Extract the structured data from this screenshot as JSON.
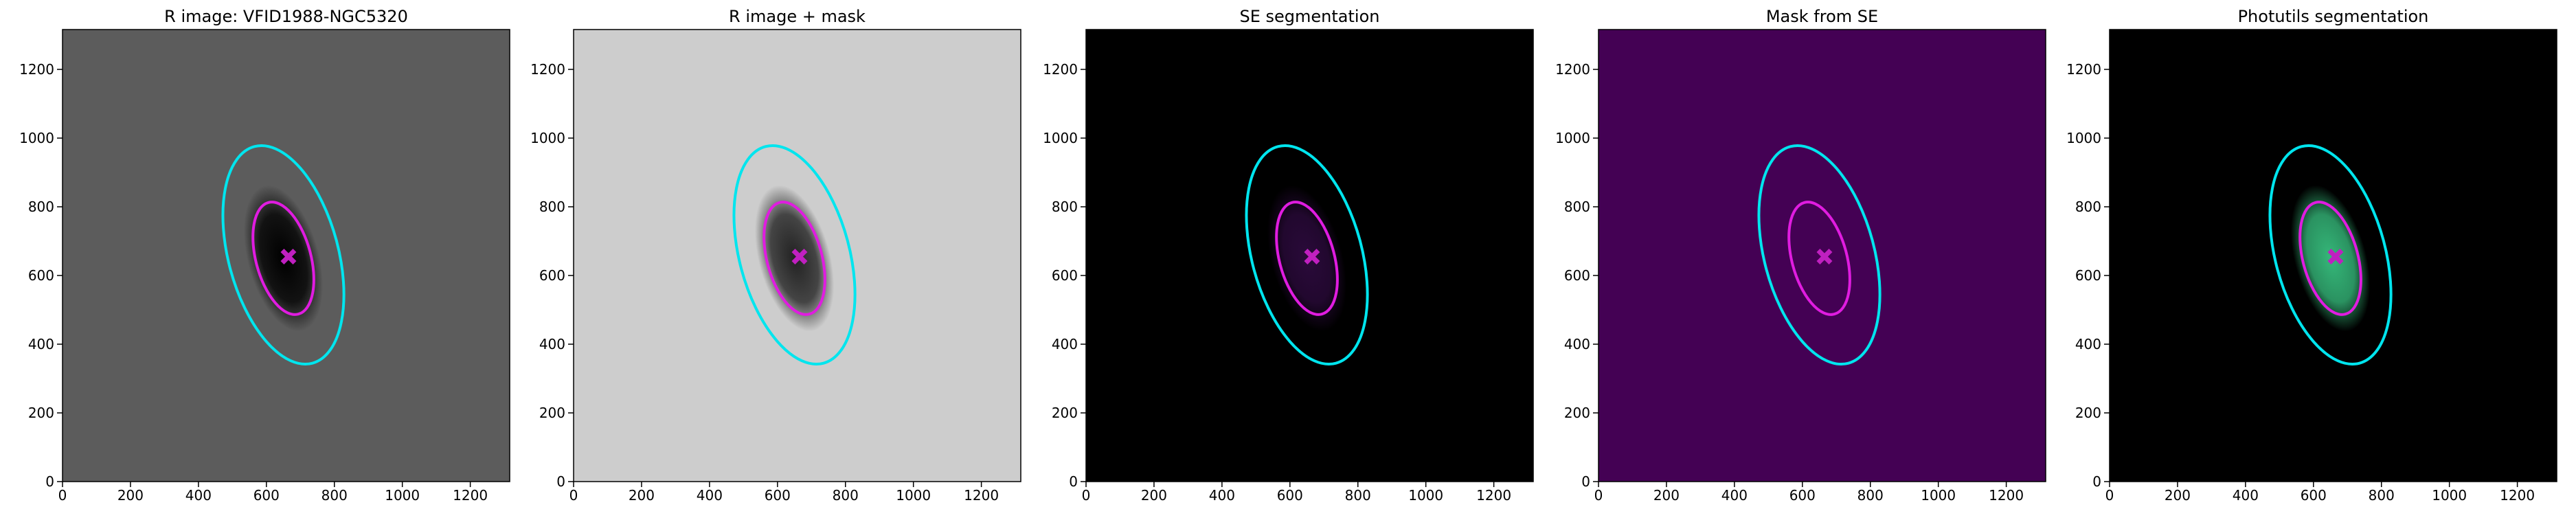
{
  "chart_data": [
    {
      "type": "image",
      "title": "R image: VFID1988-NGC5320",
      "xlim": [
        0,
        1316
      ],
      "ylim": [
        0,
        1316
      ],
      "xticks": [
        0,
        200,
        400,
        600,
        800,
        1000,
        1200
      ],
      "yticks": [
        0,
        200,
        400,
        600,
        800,
        1000,
        1200
      ],
      "background": "#5c5c5c",
      "galaxy_color": "#000000",
      "ellipses": [
        {
          "color": "#00e5ee",
          "cx": 650,
          "cy": 660,
          "a": 330,
          "b": 160,
          "angle": -75
        },
        {
          "color": "#e01ce0",
          "cx": 650,
          "cy": 650,
          "a": 170,
          "b": 80,
          "angle": -75
        }
      ],
      "marker": {
        "color": "#c020c0",
        "x": 665,
        "y": 655
      }
    },
    {
      "type": "image",
      "title": "R image + mask",
      "xlim": [
        0,
        1316
      ],
      "ylim": [
        0,
        1316
      ],
      "xticks": [
        0,
        200,
        400,
        600,
        800,
        1000,
        1200
      ],
      "yticks": [
        0,
        200,
        400,
        600,
        800,
        1000,
        1200
      ],
      "background": "#cdcdcd",
      "galaxy_color": "#222222",
      "ellipses": [
        {
          "color": "#00e5ee",
          "cx": 650,
          "cy": 660,
          "a": 330,
          "b": 160,
          "angle": -75
        },
        {
          "color": "#e01ce0",
          "cx": 650,
          "cy": 650,
          "a": 170,
          "b": 80,
          "angle": -75
        }
      ],
      "marker": {
        "color": "#c020c0",
        "x": 665,
        "y": 655
      }
    },
    {
      "type": "image",
      "title": "SE segmentation",
      "xlim": [
        0,
        1316
      ],
      "ylim": [
        0,
        1316
      ],
      "xticks": [
        0,
        200,
        400,
        600,
        800,
        1000,
        1200
      ],
      "yticks": [
        0,
        200,
        400,
        600,
        800,
        1000,
        1200
      ],
      "background": "#000000",
      "galaxy_color": "#2a0a3a",
      "ellipses": [
        {
          "color": "#00e5ee",
          "cx": 650,
          "cy": 660,
          "a": 330,
          "b": 160,
          "angle": -75
        },
        {
          "color": "#e01ce0",
          "cx": 650,
          "cy": 650,
          "a": 170,
          "b": 80,
          "angle": -75
        }
      ],
      "marker": {
        "color": "#c020c0",
        "x": 665,
        "y": 655
      }
    },
    {
      "type": "image",
      "title": "Mask from SE",
      "xlim": [
        0,
        1316
      ],
      "ylim": [
        0,
        1316
      ],
      "xticks": [
        0,
        200,
        400,
        600,
        800,
        1000,
        1200
      ],
      "yticks": [
        0,
        200,
        400,
        600,
        800,
        1000,
        1200
      ],
      "background": "#440154",
      "galaxy_color": "#440154",
      "ellipses": [
        {
          "color": "#00e5ee",
          "cx": 650,
          "cy": 660,
          "a": 330,
          "b": 160,
          "angle": -75
        },
        {
          "color": "#e01ce0",
          "cx": 650,
          "cy": 650,
          "a": 170,
          "b": 80,
          "angle": -75
        }
      ],
      "marker": {
        "color": "#c020c0",
        "x": 665,
        "y": 655
      }
    },
    {
      "type": "image",
      "title": "Photutils segmentation",
      "xlim": [
        0,
        1316
      ],
      "ylim": [
        0,
        1316
      ],
      "xticks": [
        0,
        200,
        400,
        600,
        800,
        1000,
        1200
      ],
      "yticks": [
        0,
        200,
        400,
        600,
        800,
        1000,
        1200
      ],
      "background": "#000000",
      "galaxy_color": "#35b779",
      "ellipses": [
        {
          "color": "#00e5ee",
          "cx": 650,
          "cy": 660,
          "a": 330,
          "b": 160,
          "angle": -75
        },
        {
          "color": "#e01ce0",
          "cx": 650,
          "cy": 650,
          "a": 170,
          "b": 80,
          "angle": -75
        }
      ],
      "marker": {
        "color": "#c020c0",
        "x": 665,
        "y": 655
      }
    }
  ]
}
